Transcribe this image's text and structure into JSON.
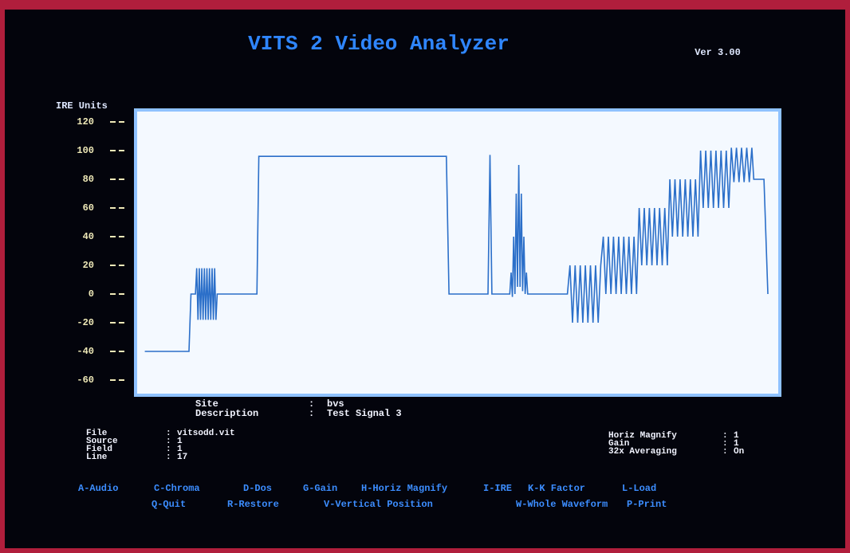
{
  "header": {
    "title": "VITS 2 Video Analyzer",
    "version": "Ver 3.00"
  },
  "chart_data": {
    "type": "line",
    "y_label": "IRE Units",
    "x": [
      1.2,
      8.1,
      8.4,
      9.1,
      9.3,
      9.5,
      9.7,
      9.9,
      10.1,
      10.3,
      10.5,
      10.7,
      10.9,
      11.1,
      11.3,
      11.5,
      11.7,
      11.9,
      12.1,
      12.3,
      12.5,
      18.7,
      19.0,
      48.3,
      48.7,
      54.8,
      55.1,
      55.4,
      58.2,
      58.4,
      58.6,
      58.8,
      59.0,
      59.2,
      59.4,
      59.6,
      59.8,
      60.0,
      60.2,
      60.4,
      60.6,
      60.8,
      61.0,
      67.2,
      67.6,
      68.0,
      68.4,
      68.8,
      69.2,
      69.6,
      70.0,
      70.4,
      70.8,
      71.2,
      71.6,
      72.0,
      72.4,
      72.8,
      73.2,
      73.6,
      74.0,
      74.4,
      74.8,
      75.2,
      75.6,
      76.0,
      76.4,
      76.8,
      77.2,
      77.6,
      78.0,
      78.4,
      78.8,
      79.2,
      79.6,
      80.0,
      80.4,
      80.8,
      81.2,
      81.6,
      82.0,
      82.4,
      82.8,
      83.2,
      83.6,
      84.0,
      84.4,
      84.8,
      85.2,
      85.6,
      86.0,
      86.4,
      86.8,
      87.2,
      87.6,
      88.0,
      88.4,
      88.8,
      89.2,
      89.6,
      90.0,
      90.4,
      90.8,
      91.2,
      91.6,
      92.0,
      92.4,
      92.8,
      93.2,
      93.6,
      94.0,
      94.4,
      94.8,
      95.2,
      95.6,
      96.0,
      96.3,
      97.9,
      98.5
    ],
    "series": [
      {
        "color": "#2b6fc9",
        "values": [
          -40,
          -40,
          0,
          0,
          18,
          -18,
          18,
          -18,
          18,
          -18,
          18,
          -18,
          18,
          -18,
          18,
          -18,
          18,
          -18,
          18,
          -18,
          0,
          0,
          96,
          96,
          0,
          0,
          97,
          0,
          0,
          15,
          -2,
          40,
          0,
          70,
          5,
          90,
          5,
          70,
          2,
          40,
          0,
          15,
          0,
          0,
          20,
          -20,
          20,
          -20,
          20,
          -20,
          20,
          -20,
          20,
          -20,
          20,
          -20,
          20,
          40,
          0,
          40,
          0,
          40,
          0,
          40,
          0,
          40,
          0,
          40,
          0,
          40,
          0,
          60,
          20,
          60,
          20,
          60,
          20,
          60,
          20,
          60,
          20,
          60,
          20,
          80,
          40,
          80,
          40,
          80,
          40,
          80,
          40,
          80,
          40,
          80,
          40,
          100,
          60,
          100,
          60,
          100,
          60,
          100,
          60,
          100,
          60,
          100,
          60,
          102,
          78,
          102,
          78,
          102,
          78,
          102,
          78,
          102,
          80,
          80,
          0
        ]
      }
    ],
    "xlim": [
      0,
      100
    ],
    "ylim": [
      -60,
      120
    ],
    "yticks": [
      -60,
      -40,
      -20,
      0,
      20,
      40,
      60,
      80,
      100,
      120
    ]
  },
  "separator": ":",
  "signal": [
    {
      "label": "Site",
      "value": "bvs"
    },
    {
      "label": "Description",
      "value": "Test Signal 3"
    }
  ],
  "file_info": [
    {
      "label": "File",
      "value": "vitsodd.vit"
    },
    {
      "label": "Source",
      "value": "1"
    },
    {
      "label": "Field",
      "value": "1"
    },
    {
      "label": "Line",
      "value": "17"
    }
  ],
  "settings": [
    {
      "label": "Horiz Magnify",
      "value": "1"
    },
    {
      "label": "Gain",
      "value": "1"
    },
    {
      "label": "32x Averaging",
      "value": "On"
    }
  ],
  "menu": [
    [
      "A-Audio",
      "C-Chroma",
      "D-Dos",
      "G-Gain",
      "H-Horiz Magnify",
      "I-IRE",
      "K-K Factor",
      "L-Load"
    ],
    [
      "Q-Quit",
      "R-Restore",
      "V-Vertical Position",
      "W-Whole Waveform",
      "P-Print"
    ]
  ]
}
